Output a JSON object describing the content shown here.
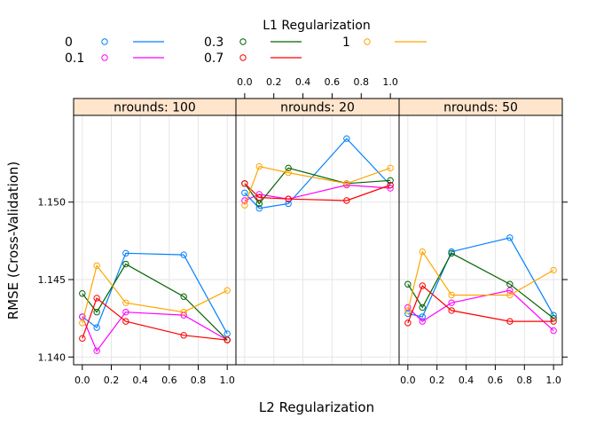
{
  "chart_data": {
    "type": "line",
    "xlabel": "L2 Regularization",
    "ylabel": "RMSE (Cross-Validation)",
    "legend_title": "L1 Regularization",
    "legend_position": "top",
    "grid": true,
    "xlim": [
      -0.06,
      1.06
    ],
    "ylim": [
      1.1395,
      1.1556
    ],
    "x_ticks": [
      0.0,
      0.2,
      0.4,
      0.6,
      0.8,
      1.0
    ],
    "x_tick_labels": [
      "0.0",
      "0.2",
      "0.4",
      "0.6",
      "0.8",
      "1.0"
    ],
    "y_ticks": [
      1.14,
      1.145,
      1.15
    ],
    "y_tick_labels": [
      "1.140",
      "1.145",
      "1.150"
    ],
    "x": [
      0.0,
      0.1,
      0.3,
      0.7,
      1.0
    ],
    "series": [
      {
        "name": "0",
        "color": "#0080ff"
      },
      {
        "name": "0.1",
        "color": "#ff00ff"
      },
      {
        "name": "0.3",
        "color": "#006400"
      },
      {
        "name": "0.7",
        "color": "#ff0000"
      },
      {
        "name": "1",
        "color": "#ffa500"
      }
    ],
    "panels": [
      {
        "label": "nrounds: 100",
        "series_values": [
          [
            1.1426,
            1.1419,
            1.1467,
            1.1466,
            1.1415
          ],
          [
            1.1426,
            1.1404,
            1.1429,
            1.1427,
            1.1411
          ],
          [
            1.1441,
            1.1429,
            1.146,
            1.1439,
            1.1411
          ],
          [
            1.1412,
            1.1438,
            1.1423,
            1.1414,
            1.1411
          ],
          [
            1.1422,
            1.1459,
            1.1435,
            1.1429,
            1.1443
          ]
        ]
      },
      {
        "label": "nrounds: 20",
        "series_values": [
          [
            1.1506,
            1.1496,
            1.1499,
            1.1541,
            1.1511
          ],
          [
            1.1501,
            1.1505,
            1.1502,
            1.1511,
            1.1509
          ],
          [
            1.1512,
            1.1499,
            1.1522,
            1.1512,
            1.1514
          ],
          [
            1.1512,
            1.1503,
            1.1502,
            1.1501,
            1.1511
          ],
          [
            1.1498,
            1.1523,
            1.1519,
            1.1512,
            1.1522
          ]
        ]
      },
      {
        "label": "nrounds: 50",
        "series_values": [
          [
            1.1428,
            1.1426,
            1.1468,
            1.1477,
            1.1427
          ],
          [
            1.1432,
            1.1423,
            1.1435,
            1.1443,
            1.1417
          ],
          [
            1.1447,
            1.1432,
            1.1467,
            1.1447,
            1.1425
          ],
          [
            1.1422,
            1.1446,
            1.143,
            1.1423,
            1.1423
          ],
          [
            1.143,
            1.1468,
            1.144,
            1.144,
            1.1456
          ]
        ]
      }
    ]
  }
}
